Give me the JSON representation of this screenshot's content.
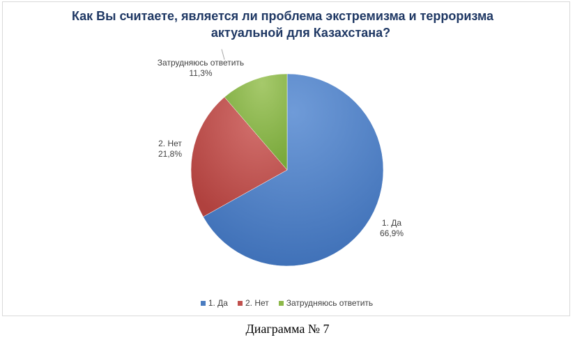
{
  "chart_data": {
    "type": "pie",
    "title_line1": "Как Вы считаете, является ли проблема экстремизма и терроризма",
    "title_line2": "актуальной  для Казахстана?",
    "slices": [
      {
        "label": "1. Да",
        "value": 66.9,
        "value_text": "66,9%",
        "color": "#4a7cc0"
      },
      {
        "label": "2. Нет",
        "value": 21.8,
        "value_text": "21,8%",
        "color": "#c0504d"
      },
      {
        "label": "Затрудняюсь ответить",
        "value": 11.3,
        "value_text": "11,3%",
        "color": "#8db84a"
      }
    ],
    "legend_position": "bottom"
  },
  "caption": "Диаграмма № 7"
}
